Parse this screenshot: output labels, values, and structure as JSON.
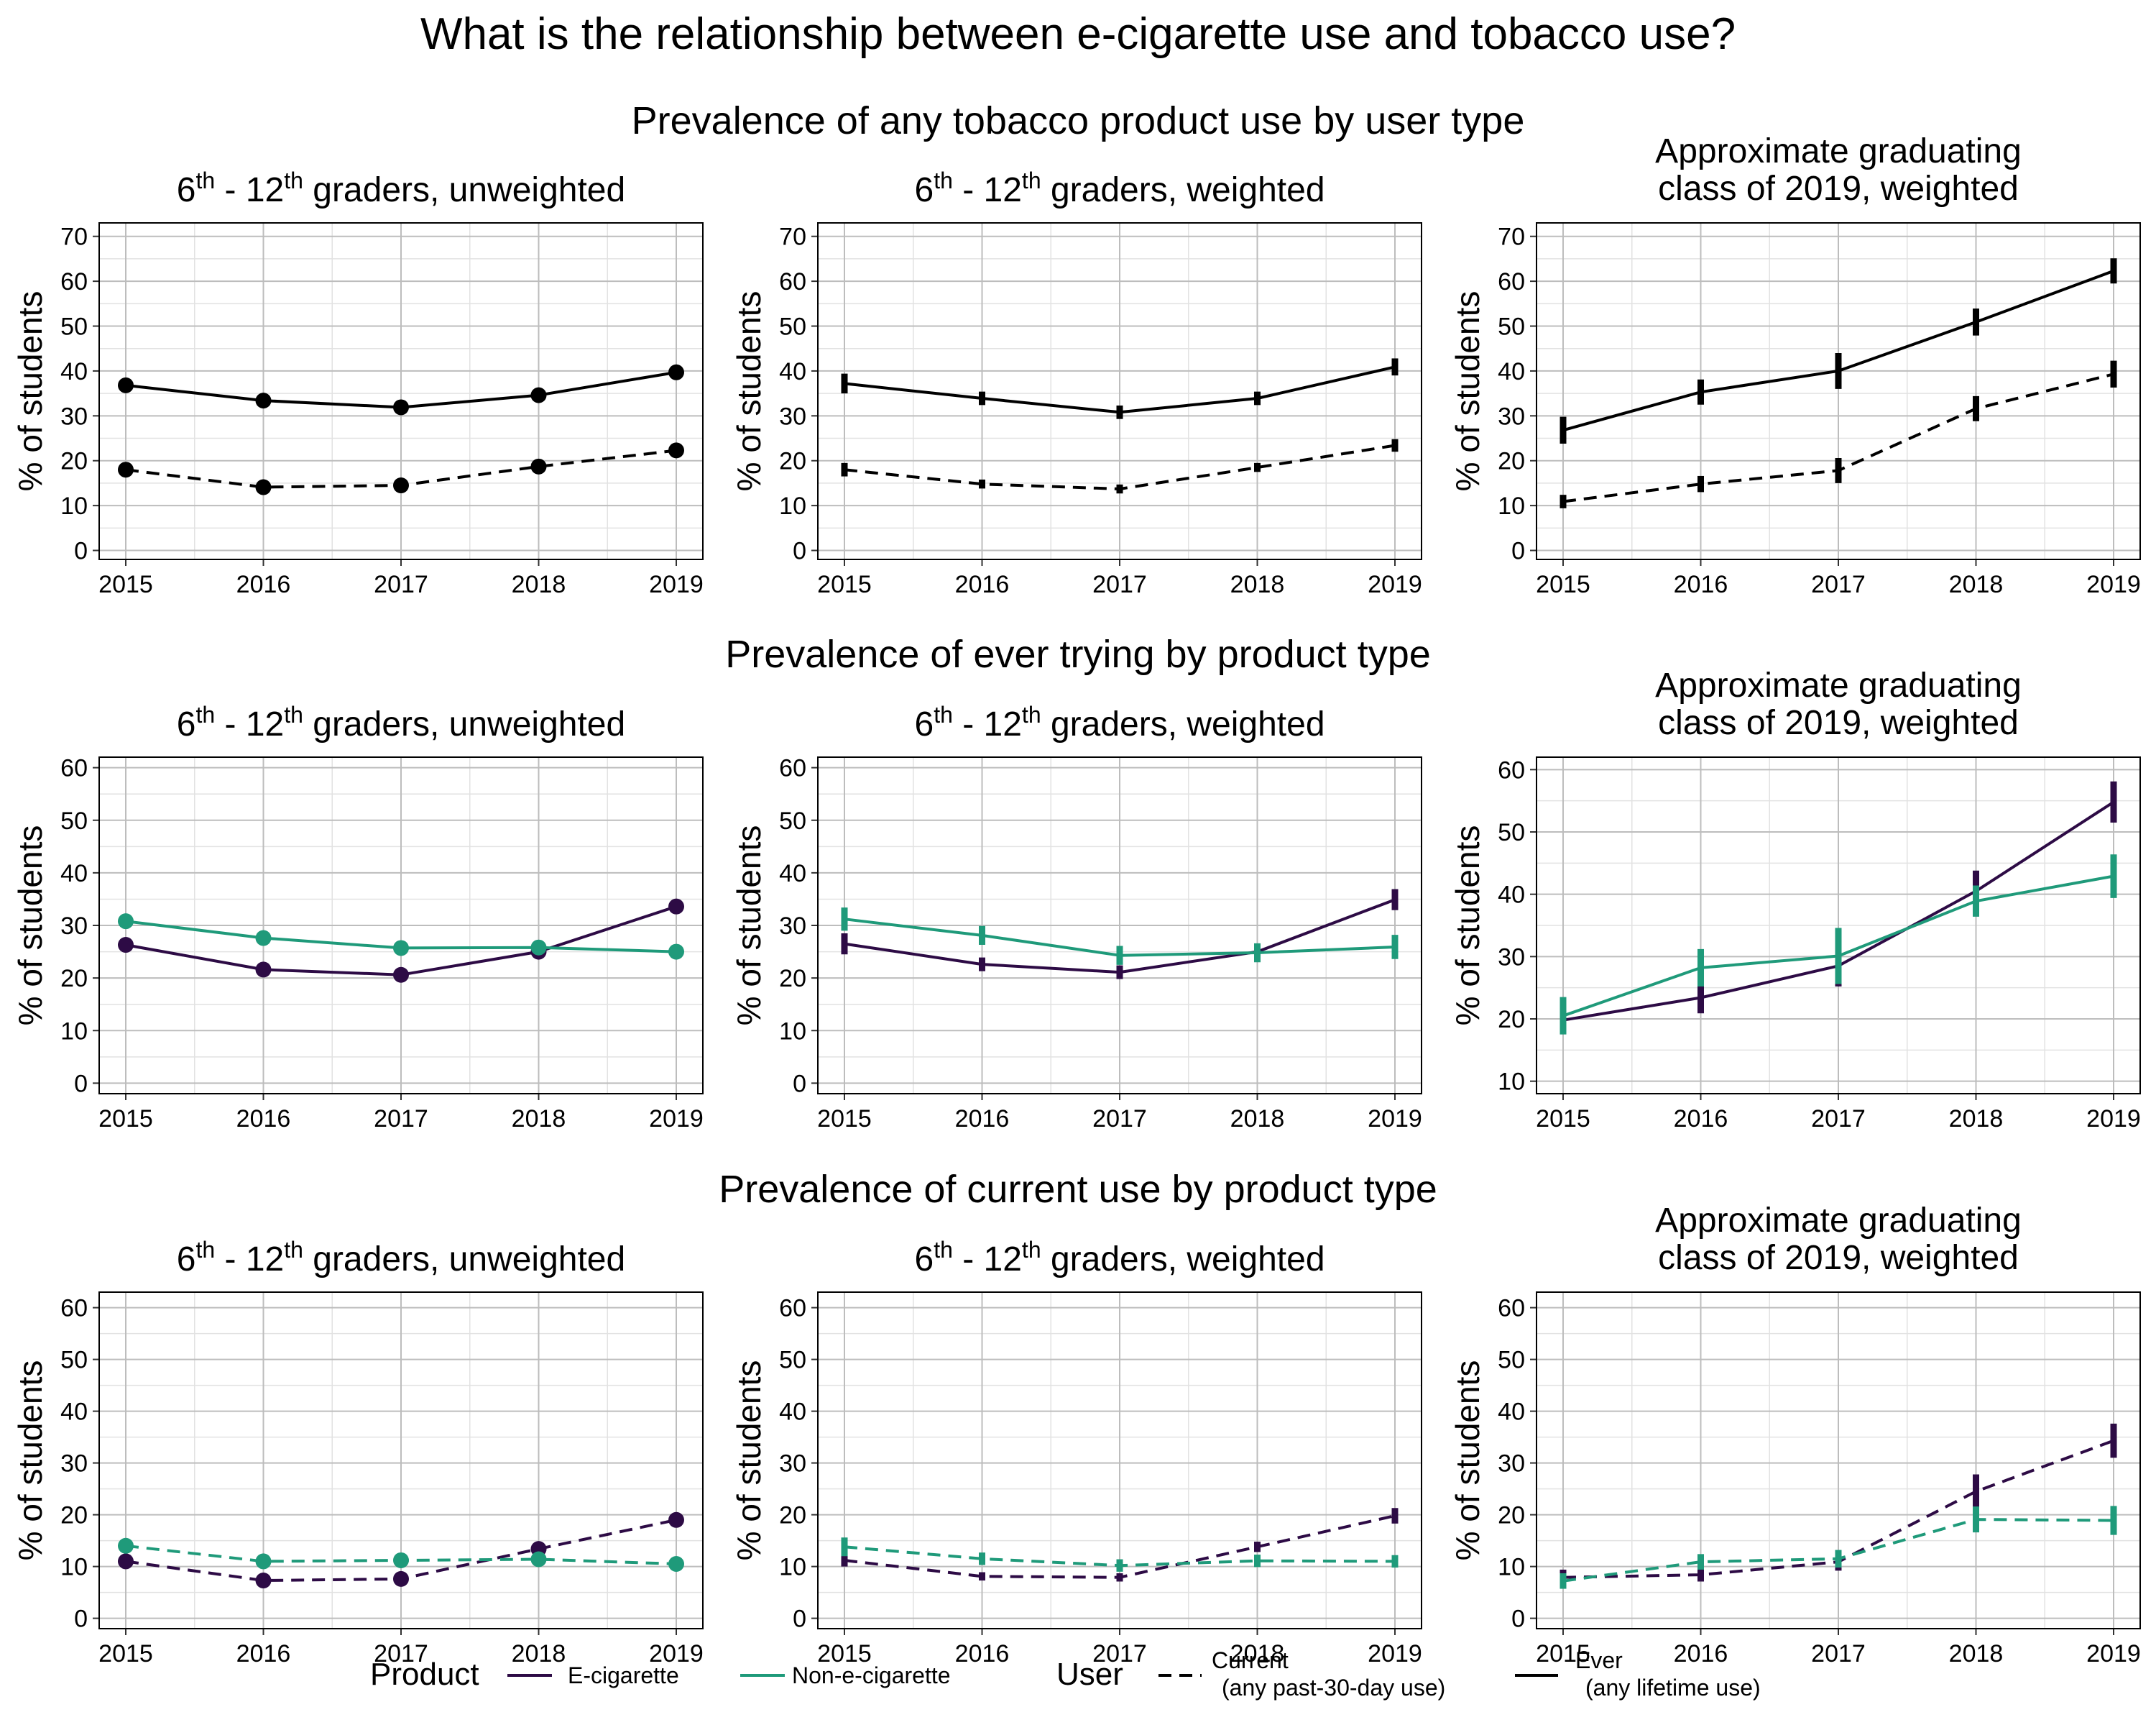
{
  "title": "What is the relationship between e-cigarette use and tobacco use?",
  "colors": {
    "ecig": "#2d0b45",
    "nonecig": "#1f9a7a",
    "tobacco": "#000000",
    "grid_major": "#bdbdbd",
    "grid_minor": "#e2e2e2"
  },
  "row_titles": [
    "Prevalence of any tobacco product use by user type",
    "Prevalence of ever trying by product type",
    "Prevalence of current use by product type"
  ],
  "panel_titles": {
    "unweighted": {
      "pre": "6",
      "sup1": "th",
      "mid": " - 12",
      "sup2": "th",
      "post": " graders, unweighted"
    },
    "weighted": {
      "pre": "6",
      "sup1": "th",
      "mid": " - 12",
      "sup2": "th",
      "post": " graders, weighted"
    },
    "cohort": {
      "line1": "Approximate graduating",
      "line2": "class of 2019, weighted"
    }
  },
  "ylabel": "% of students",
  "legend": {
    "product_title": "Product",
    "product_items": [
      "E-cigarette",
      "Non-e-cigarette"
    ],
    "user_title": "User",
    "user_items": [
      {
        "line1": "Current",
        "line2": "(any past-30-day use)"
      },
      {
        "line1": "Ever",
        "line2": "(any lifetime use)"
      }
    ]
  },
  "chart_data": [
    {
      "type": "line",
      "row": 0,
      "col": 0,
      "x": [
        2015,
        2016,
        2017,
        2018,
        2019
      ],
      "ylim": [
        -2,
        73
      ],
      "yticks": [
        0,
        10,
        20,
        30,
        40,
        50,
        60,
        70
      ],
      "style": "points",
      "series": [
        {
          "product": "tobacco",
          "user": "Ever",
          "values": [
            36.8,
            33.4,
            31.9,
            34.6,
            39.7
          ]
        },
        {
          "product": "tobacco",
          "user": "Current",
          "values": [
            18.0,
            14.1,
            14.5,
            18.7,
            22.3
          ]
        }
      ]
    },
    {
      "type": "line",
      "row": 0,
      "col": 1,
      "x": [
        2015,
        2016,
        2017,
        2018,
        2019
      ],
      "ylim": [
        -2,
        73
      ],
      "yticks": [
        0,
        10,
        20,
        30,
        40,
        50,
        60,
        70
      ],
      "style": "errorbars",
      "series": [
        {
          "product": "tobacco",
          "user": "Ever",
          "values": [
            37.2,
            33.9,
            30.8,
            33.9,
            40.9
          ],
          "err": [
            2.2,
            1.5,
            1.5,
            1.5,
            1.9
          ]
        },
        {
          "product": "tobacco",
          "user": "Current",
          "values": [
            18.0,
            14.8,
            13.7,
            18.5,
            23.4
          ],
          "err": [
            1.5,
            1.0,
            1.0,
            1.0,
            1.4
          ]
        }
      ]
    },
    {
      "type": "line",
      "row": 0,
      "col": 2,
      "x": [
        2015,
        2016,
        2017,
        2018,
        2019
      ],
      "ylim": [
        -2,
        73
      ],
      "yticks": [
        0,
        10,
        20,
        30,
        40,
        50,
        60,
        70
      ],
      "style": "errorbars",
      "series": [
        {
          "product": "tobacco",
          "user": "Ever",
          "values": [
            26.8,
            35.3,
            40.0,
            50.9,
            62.3
          ],
          "err": [
            3.0,
            2.8,
            4.0,
            3.0,
            2.8
          ]
        },
        {
          "product": "tobacco",
          "user": "Current",
          "values": [
            10.9,
            14.8,
            17.8,
            31.6,
            39.3
          ],
          "err": [
            1.5,
            1.8,
            2.8,
            2.8,
            3.0
          ]
        }
      ]
    },
    {
      "type": "line",
      "row": 1,
      "col": 0,
      "x": [
        2015,
        2016,
        2017,
        2018,
        2019
      ],
      "ylim": [
        -2,
        62
      ],
      "yticks": [
        0,
        10,
        20,
        30,
        40,
        50,
        60
      ],
      "style": "points",
      "series": [
        {
          "product": "ecig",
          "user": "Ever",
          "values": [
            26.3,
            21.6,
            20.6,
            25.0,
            33.6
          ]
        },
        {
          "product": "nonecig",
          "user": "Ever",
          "values": [
            30.8,
            27.6,
            25.7,
            25.8,
            25.0
          ]
        }
      ]
    },
    {
      "type": "line",
      "row": 1,
      "col": 1,
      "x": [
        2015,
        2016,
        2017,
        2018,
        2019
      ],
      "ylim": [
        -2,
        62
      ],
      "yticks": [
        0,
        10,
        20,
        30,
        40,
        50,
        60
      ],
      "style": "errorbars",
      "series": [
        {
          "product": "ecig",
          "user": "Ever",
          "values": [
            26.5,
            22.6,
            21.1,
            25.0,
            34.9
          ],
          "err": [
            2.0,
            1.3,
            1.3,
            1.3,
            2.0
          ]
        },
        {
          "product": "nonecig",
          "user": "Ever",
          "values": [
            31.2,
            28.1,
            24.3,
            24.8,
            25.9
          ],
          "err": [
            2.2,
            1.8,
            1.8,
            1.8,
            2.3
          ]
        }
      ]
    },
    {
      "type": "line",
      "row": 1,
      "col": 2,
      "x": [
        2015,
        2016,
        2017,
        2018,
        2019
      ],
      "ylim": [
        8,
        62
      ],
      "yticks": [
        10,
        20,
        30,
        40,
        50,
        60
      ],
      "style": "errorbars",
      "series": [
        {
          "product": "ecig",
          "user": "Ever",
          "values": [
            19.8,
            23.4,
            28.5,
            40.5,
            54.8
          ],
          "err": [
            2.2,
            2.5,
            3.3,
            3.3,
            3.3
          ]
        },
        {
          "product": "nonecig",
          "user": "Ever",
          "values": [
            20.5,
            28.2,
            30.1,
            38.9,
            42.9
          ],
          "err": [
            3.0,
            3.0,
            4.5,
            2.5,
            3.5
          ]
        }
      ]
    },
    {
      "type": "line",
      "row": 2,
      "col": 0,
      "x": [
        2015,
        2016,
        2017,
        2018,
        2019
      ],
      "ylim": [
        -2,
        63
      ],
      "yticks": [
        0,
        10,
        20,
        30,
        40,
        50,
        60
      ],
      "style": "points",
      "series": [
        {
          "product": "ecig",
          "user": "Current",
          "values": [
            11.0,
            7.3,
            7.6,
            13.4,
            19.0
          ]
        },
        {
          "product": "nonecig",
          "user": "Current",
          "values": [
            14.0,
            11.0,
            11.2,
            11.4,
            10.5
          ]
        }
      ]
    },
    {
      "type": "line",
      "row": 2,
      "col": 1,
      "x": [
        2015,
        2016,
        2017,
        2018,
        2019
      ],
      "ylim": [
        -2,
        63
      ],
      "yticks": [
        0,
        10,
        20,
        30,
        40,
        50,
        60
      ],
      "style": "errorbars",
      "series": [
        {
          "product": "ecig",
          "user": "Current",
          "values": [
            11.2,
            8.1,
            7.9,
            13.8,
            19.8
          ],
          "err": [
            1.2,
            0.8,
            0.8,
            1.0,
            1.5
          ]
        },
        {
          "product": "nonecig",
          "user": "Current",
          "values": [
            13.8,
            11.5,
            10.2,
            11.1,
            11.0
          ],
          "err": [
            1.8,
            1.2,
            1.2,
            1.2,
            1.2
          ]
        }
      ]
    },
    {
      "type": "line",
      "row": 2,
      "col": 2,
      "x": [
        2015,
        2016,
        2017,
        2018,
        2019
      ],
      "ylim": [
        -2,
        63
      ],
      "yticks": [
        0,
        10,
        20,
        30,
        40,
        50,
        60
      ],
      "style": "errorbars",
      "series": [
        {
          "product": "ecig",
          "user": "Current",
          "values": [
            7.9,
            8.4,
            10.9,
            24.5,
            34.3
          ],
          "err": [
            1.5,
            1.3,
            1.7,
            3.3,
            3.3
          ]
        },
        {
          "product": "nonecig",
          "user": "Current",
          "values": [
            7.2,
            10.9,
            11.5,
            19.1,
            18.9
          ],
          "err": [
            1.5,
            1.5,
            1.7,
            2.5,
            2.8
          ]
        }
      ]
    }
  ]
}
